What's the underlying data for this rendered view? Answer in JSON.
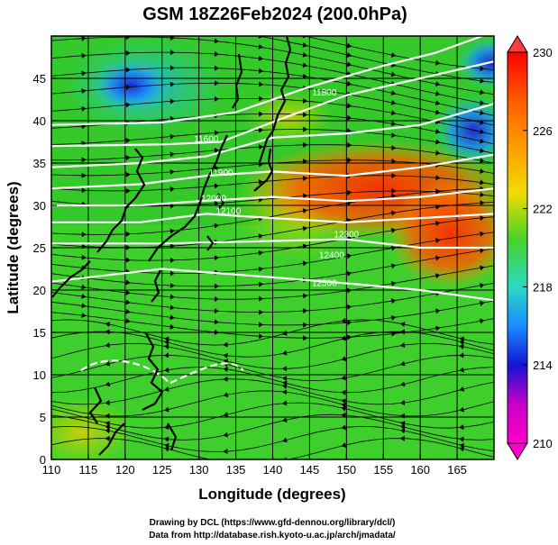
{
  "title": "GSM 18Z26Feb2024 (200.0hPa)",
  "xlabel": "Longitude (degrees)",
  "ylabel": "Latitude  (degrees)",
  "credits": [
    "Drawing by DCL (https://www.gfd-dennou.org/library/dcl/)",
    "Data from http://database.rish.kyoto-u.ac.jp/arch/jmadata/"
  ],
  "map": {
    "lon_range": [
      110,
      170
    ],
    "lat_range": [
      0,
      50
    ],
    "lon_ticks": [
      110,
      115,
      120,
      125,
      130,
      135,
      140,
      145,
      150,
      155,
      160,
      165
    ],
    "lat_ticks": [
      0,
      5,
      10,
      15,
      20,
      25,
      30,
      35,
      40,
      45
    ],
    "grid": true,
    "shaded_variable_range": [
      210,
      230
    ],
    "contour_labels": [
      {
        "text": "11800",
        "lon": 147,
        "lat": 43
      },
      {
        "text": "11600",
        "lon": 131,
        "lat": 37.5
      },
      {
        "text": "11900",
        "lon": 133,
        "lat": 33.5
      },
      {
        "text": "12000",
        "lon": 132,
        "lat": 30.5
      },
      {
        "text": "12100",
        "lon": 134,
        "lat": 29.0
      },
      {
        "text": "12300",
        "lon": 150,
        "lat": 26.2
      },
      {
        "text": "12400",
        "lon": 148,
        "lat": 23.8
      },
      {
        "text": "12500",
        "lon": 147,
        "lat": 20.5
      }
    ],
    "wind_field": "streamline arrows"
  },
  "colorbar": {
    "ticks": [
      230,
      226,
      222,
      218,
      214,
      210
    ],
    "colors": [
      "#ff0000",
      "#ff8c00",
      "#f0d700",
      "#46d22a",
      "#2bd9c4",
      "#1a8cff",
      "#1515d4",
      "#c800c8",
      "#ff00c8"
    ]
  }
}
